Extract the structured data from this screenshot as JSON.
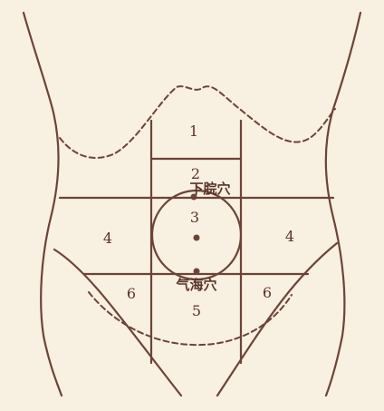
{
  "colors": {
    "background": "#f8f0e0",
    "line": "#6b4438",
    "text": "#5a3328"
  },
  "regions": {
    "r1": "1",
    "r2": "2",
    "r3": "3",
    "r4_left": "4",
    "r4_right": "4",
    "r5": "5",
    "r6_left": "6",
    "r6_right": "6"
  },
  "acupoints": {
    "xiawan": "下脘穴",
    "qihai": "气海穴"
  }
}
